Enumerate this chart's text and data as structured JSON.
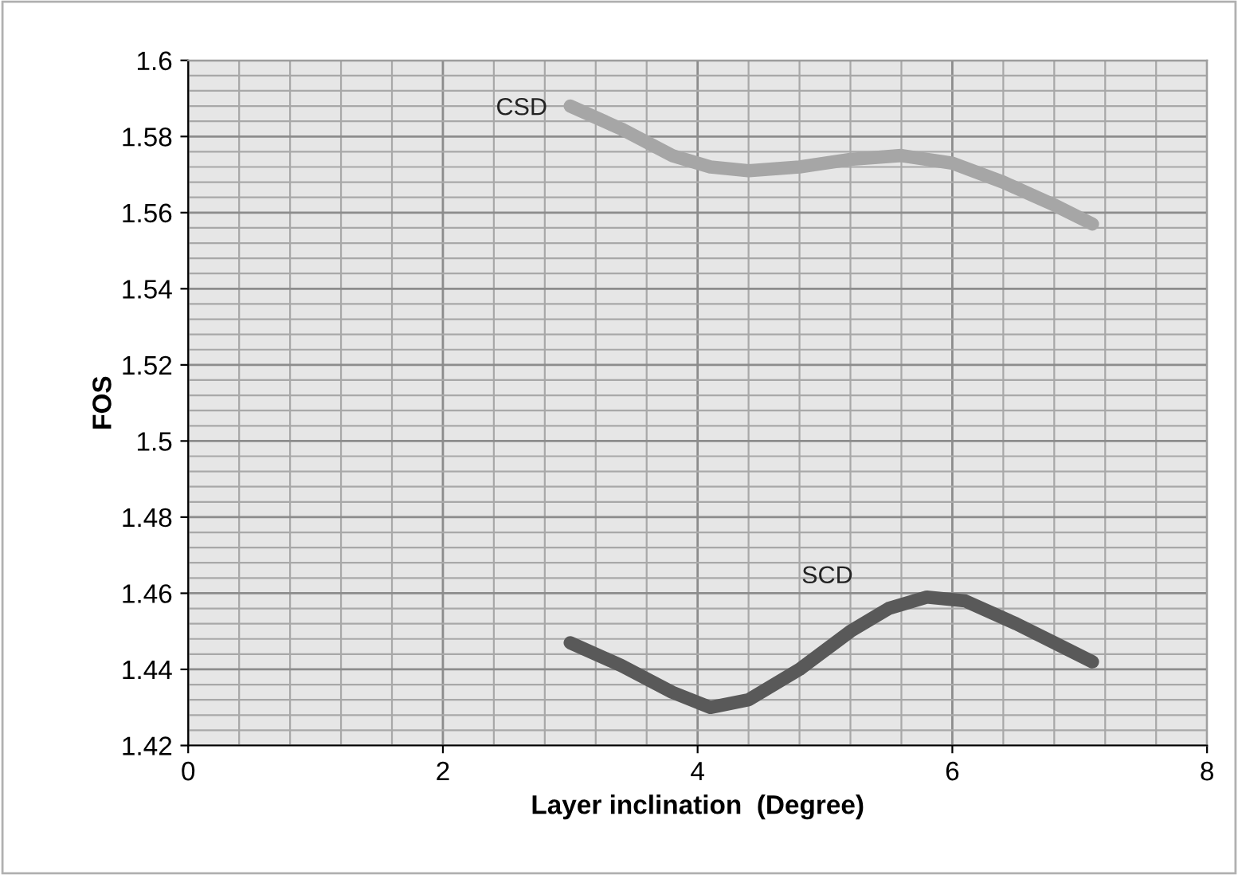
{
  "chart_data": {
    "type": "line",
    "xlabel": "Layer inclination  (Degree)",
    "ylabel": "FOS",
    "xlim": [
      0,
      8
    ],
    "xticks": [
      0,
      2,
      4,
      6,
      8
    ],
    "ylim": [
      1.42,
      1.6
    ],
    "yticks": [
      1.42,
      1.44,
      1.46,
      1.48,
      1.5,
      1.52,
      1.54,
      1.56,
      1.58,
      1.6
    ],
    "grid": true,
    "legend": false,
    "marker": "none",
    "line_style": "solid",
    "series": [
      {
        "name": "CSD",
        "color": "#a6a6a6",
        "x": [
          3,
          3.4,
          3.8,
          4.1,
          4.4,
          4.8,
          5.2,
          5.6,
          6,
          6.4,
          6.8,
          7.1
        ],
        "values": [
          1.588,
          1.582,
          1.575,
          1.572,
          1.571,
          1.572,
          1.574,
          1.575,
          1.573,
          1.568,
          1.562,
          1.557
        ]
      },
      {
        "name": "SCD",
        "color": "#595959",
        "x": [
          3,
          3.4,
          3.8,
          4.1,
          4.4,
          4.8,
          5.2,
          5.5,
          5.8,
          6.1,
          6.5,
          6.8,
          7.1
        ],
        "values": [
          1.447,
          1.441,
          1.434,
          1.43,
          1.432,
          1.44,
          1.45,
          1.456,
          1.459,
          1.458,
          1.452,
          1.447,
          1.442
        ]
      }
    ]
  }
}
